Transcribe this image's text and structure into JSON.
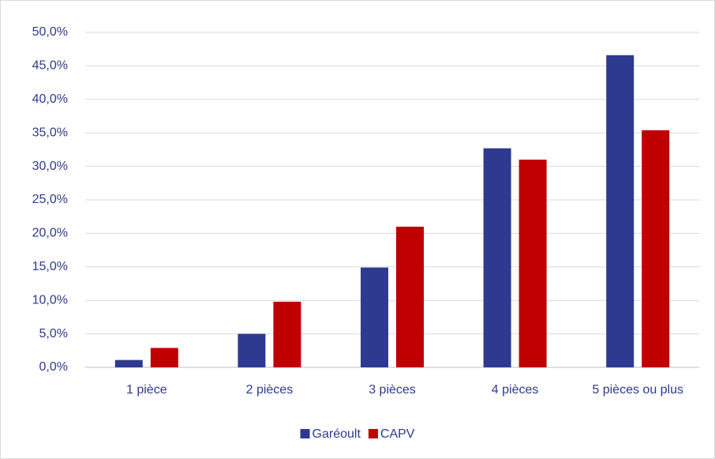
{
  "chart_data": {
    "type": "bar",
    "categories": [
      "1 pièce",
      "2 pièces",
      "3 pièces",
      "4 pièces",
      "5 pièces ou plus"
    ],
    "series": [
      {
        "name": "Garéoult",
        "color": "#2e3a8f",
        "values": [
          1.1,
          5.0,
          14.9,
          32.7,
          46.6
        ]
      },
      {
        "name": "CAPV",
        "color": "#c00000",
        "values": [
          2.9,
          9.8,
          21.0,
          31.0,
          35.4
        ]
      }
    ],
    "ylim": [
      0,
      50
    ],
    "yticks": [
      {
        "value": 0,
        "label": "0,0%"
      },
      {
        "value": 5,
        "label": "5,0%"
      },
      {
        "value": 10,
        "label": "10,0%"
      },
      {
        "value": 15,
        "label": "15,0%"
      },
      {
        "value": 20,
        "label": "20,0%"
      },
      {
        "value": 25,
        "label": "25,0%"
      },
      {
        "value": 30,
        "label": "30,0%"
      },
      {
        "value": 35,
        "label": "35,0%"
      },
      {
        "value": 40,
        "label": "40,0%"
      },
      {
        "value": 45,
        "label": "45,0%"
      },
      {
        "value": 50,
        "label": "50,0%"
      }
    ],
    "grid": true,
    "legend": "bottom"
  }
}
